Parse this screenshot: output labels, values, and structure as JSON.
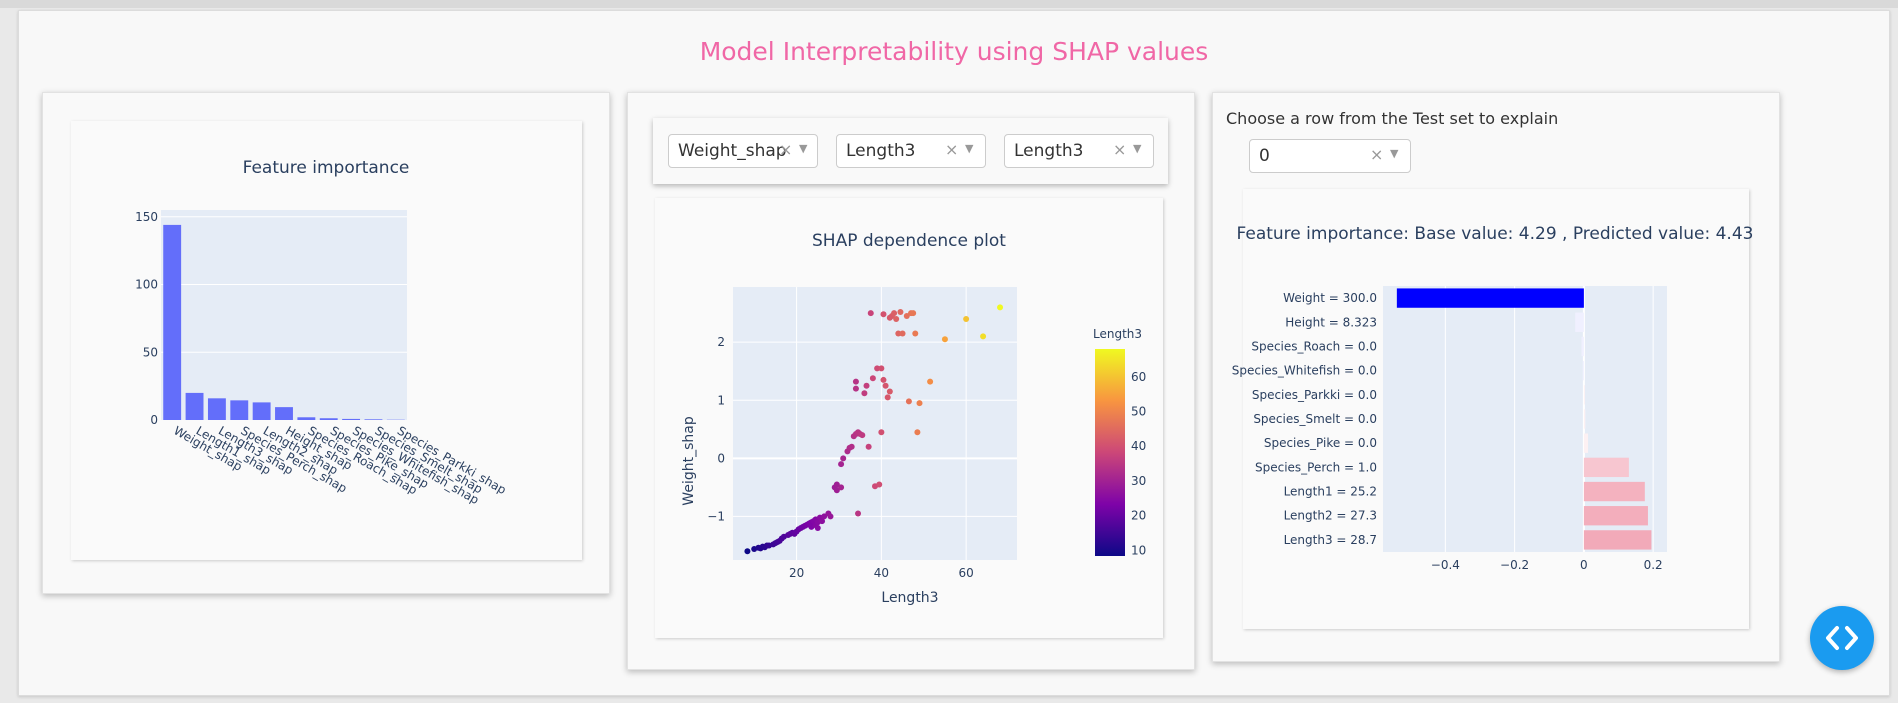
{
  "app": {
    "title": "Model Interpretability using SHAP values"
  },
  "importance_card": {
    "chart_data": {
      "type": "bar",
      "title": "Feature importance",
      "categories": [
        "Weight_shap",
        "Length1_shap",
        "Length3_shap",
        "Species_Perch_shap",
        "Length2_shap",
        "Height_shap",
        "Species_Roach_shap",
        "Species_Pike_shap",
        "Species_Whitefish_shap",
        "Species_Smelt_shap",
        "Species_Parkki_shap"
      ],
      "values": [
        144,
        20,
        16,
        14.5,
        13,
        9.5,
        2,
        1.3,
        0.8,
        0.5,
        0.2
      ],
      "ylim": [
        0,
        155
      ],
      "yticks": [
        0,
        50,
        100,
        150
      ],
      "grid": true,
      "color": "#636efa"
    }
  },
  "dependence_card": {
    "dropdowns": [
      {
        "value": "Weight_shap"
      },
      {
        "value": "Length3"
      },
      {
        "value": "Length3"
      }
    ],
    "clear_glyph": "×",
    "arrow_glyph": "▼",
    "chart_data": {
      "type": "scatter",
      "title": "SHAP dependence plot",
      "xlabel": "Length3",
      "ylabel": "Weight_shap",
      "xlim": [
        5,
        72
      ],
      "ylim": [
        -1.75,
        2.95
      ],
      "xticks": [
        20,
        40,
        60
      ],
      "yticks": [
        -1,
        0,
        1,
        2
      ],
      "colorbar": {
        "title": "Length3",
        "min": 8.4,
        "max": 68,
        "ticks": [
          10,
          20,
          30,
          40,
          50,
          60
        ]
      },
      "points": [
        [
          8.4,
          -1.6
        ],
        [
          10.0,
          -1.56
        ],
        [
          11.0,
          -1.54
        ],
        [
          11.5,
          -1.55
        ],
        [
          12.0,
          -1.52
        ],
        [
          12.5,
          -1.53
        ],
        [
          13.0,
          -1.5
        ],
        [
          13.5,
          -1.5
        ],
        [
          14.5,
          -1.48
        ],
        [
          15.0,
          -1.46
        ],
        [
          15.5,
          -1.44
        ],
        [
          16.0,
          -1.42
        ],
        [
          16.5,
          -1.38
        ],
        [
          17.0,
          -1.35
        ],
        [
          18.0,
          -1.32
        ],
        [
          18.5,
          -1.3
        ],
        [
          19.0,
          -1.28
        ],
        [
          19.5,
          -1.3
        ],
        [
          20.0,
          -1.26
        ],
        [
          20.5,
          -1.22
        ],
        [
          21.0,
          -1.2
        ],
        [
          21.5,
          -1.18
        ],
        [
          22.0,
          -1.16
        ],
        [
          22.5,
          -1.14
        ],
        [
          23.0,
          -1.12
        ],
        [
          23.5,
          -1.1
        ],
        [
          23.5,
          -1.18
        ],
        [
          24.0,
          -1.08
        ],
        [
          24.5,
          -1.05
        ],
        [
          24.5,
          -1.15
        ],
        [
          25.0,
          -1.1
        ],
        [
          25.5,
          -1.02
        ],
        [
          25.0,
          -1.2
        ],
        [
          26.0,
          -1.08
        ],
        [
          26.5,
          -1.0
        ],
        [
          27.5,
          -0.95
        ],
        [
          28.0,
          -1.0
        ],
        [
          29.0,
          -0.5
        ],
        [
          29.5,
          -0.45
        ],
        [
          29.5,
          -0.55
        ],
        [
          30.5,
          -0.5
        ],
        [
          30.5,
          -0.1
        ],
        [
          31.0,
          0.0
        ],
        [
          32.0,
          0.12
        ],
        [
          32.5,
          0.18
        ],
        [
          33.0,
          0.2
        ],
        [
          33.5,
          0.38
        ],
        [
          34.0,
          0.42
        ],
        [
          34.5,
          0.45
        ],
        [
          35.0,
          0.42
        ],
        [
          35.5,
          0.4
        ],
        [
          34.0,
          1.2
        ],
        [
          34.0,
          1.32
        ],
        [
          34.5,
          -0.95
        ],
        [
          36.0,
          1.12
        ],
        [
          36.5,
          1.25
        ],
        [
          37.0,
          0.2
        ],
        [
          38.0,
          1.38
        ],
        [
          38.5,
          -0.48
        ],
        [
          39.0,
          1.55
        ],
        [
          39.5,
          -0.45
        ],
        [
          40.0,
          1.55
        ],
        [
          40.0,
          0.45
        ],
        [
          40.5,
          1.35
        ],
        [
          41.0,
          1.25
        ],
        [
          41.5,
          1.05
        ],
        [
          42.0,
          1.15
        ],
        [
          42.5,
          2.45
        ],
        [
          43.0,
          2.5
        ],
        [
          43.5,
          2.4
        ],
        [
          44.0,
          2.15
        ],
        [
          45.0,
          2.15
        ],
        [
          46.0,
          2.45
        ],
        [
          46.5,
          0.98
        ],
        [
          47.0,
          2.5
        ],
        [
          47.5,
          2.5
        ],
        [
          48.0,
          2.15
        ],
        [
          48.5,
          0.45
        ],
        [
          49.0,
          0.95
        ],
        [
          51.5,
          1.32
        ],
        [
          37.5,
          2.5
        ],
        [
          40.5,
          2.48
        ],
        [
          55.0,
          2.05
        ],
        [
          60.0,
          2.4
        ],
        [
          64.0,
          2.1
        ],
        [
          68.0,
          2.6
        ],
        [
          42.0,
          2.42
        ],
        [
          44.5,
          2.52
        ]
      ]
    }
  },
  "explain_card": {
    "label": "Choose a row from the Test set to explain",
    "row_dropdown": {
      "value": "0"
    },
    "chart_data": {
      "type": "bar",
      "orientation": "horizontal",
      "title": "Feature importance: Base value: 4.29 , Predicted value: 4.43",
      "categories": [
        "Weight = 300.0",
        "Height = 8.323",
        "Species_Roach = 0.0",
        "Species_Whitefish = 0.0",
        "Species_Parkki = 0.0",
        "Species_Smelt = 0.0",
        "Species_Pike = 0.0",
        "Species_Perch = 1.0",
        "Length1 = 25.2",
        "Length2 = 27.3",
        "Length3 = 28.7"
      ],
      "values": [
        -0.54,
        -0.025,
        -0.007,
        -0.003,
        0.002,
        0.004,
        0.012,
        0.13,
        0.176,
        0.185,
        0.195
      ],
      "xlim": [
        -0.58,
        0.24
      ],
      "xticks": [
        -0.4,
        -0.2,
        0,
        0.2
      ],
      "colorscale": [
        "#0000ff",
        "#ffffff",
        "#dc143c"
      ]
    }
  }
}
